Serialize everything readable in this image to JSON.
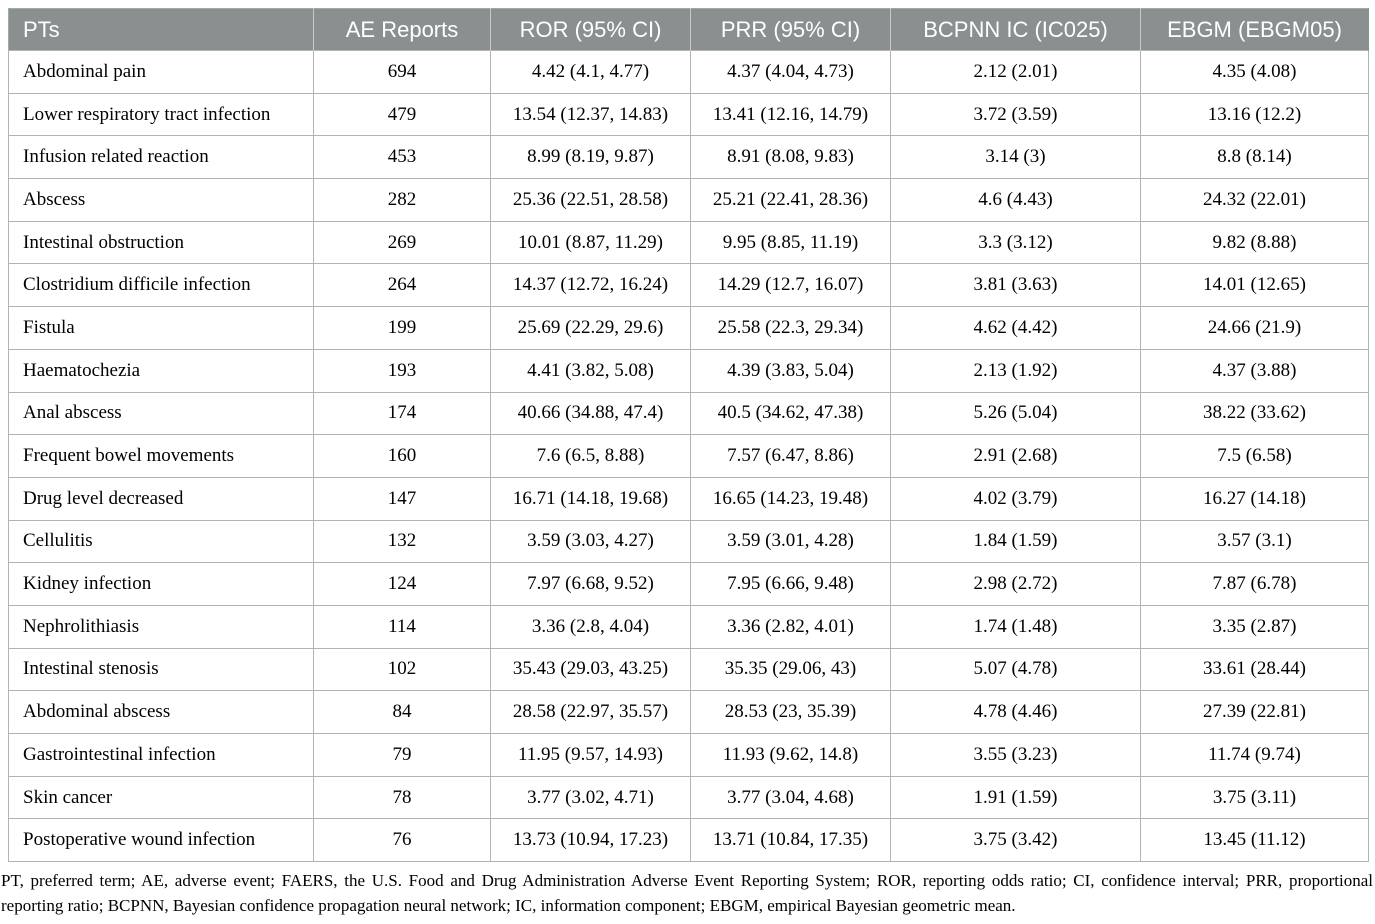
{
  "table": {
    "columns": [
      {
        "key": "pt",
        "label": "PTs",
        "align": "left"
      },
      {
        "key": "ae",
        "label": "AE Reports",
        "align": "center"
      },
      {
        "key": "ror",
        "label": "ROR (95% CI)",
        "align": "center"
      },
      {
        "key": "prr",
        "label": "PRR (95% CI)",
        "align": "center"
      },
      {
        "key": "bcpnn",
        "label": "BCPNN IC (IC025)",
        "align": "center"
      },
      {
        "key": "ebgm",
        "label": "EBGM (EBGM05)",
        "align": "center"
      }
    ],
    "rows": [
      [
        "Abdominal pain",
        "694",
        "4.42 (4.1, 4.77)",
        "4.37 (4.04, 4.73)",
        "2.12 (2.01)",
        "4.35 (4.08)"
      ],
      [
        "Lower respiratory tract infection",
        "479",
        "13.54 (12.37, 14.83)",
        "13.41 (12.16, 14.79)",
        "3.72 (3.59)",
        "13.16 (12.2)"
      ],
      [
        "Infusion related reaction",
        "453",
        "8.99 (8.19, 9.87)",
        "8.91 (8.08, 9.83)",
        "3.14 (3)",
        "8.8 (8.14)"
      ],
      [
        "Abscess",
        "282",
        "25.36 (22.51, 28.58)",
        "25.21 (22.41, 28.36)",
        "4.6 (4.43)",
        "24.32 (22.01)"
      ],
      [
        "Intestinal obstruction",
        "269",
        "10.01 (8.87, 11.29)",
        "9.95 (8.85, 11.19)",
        "3.3 (3.12)",
        "9.82 (8.88)"
      ],
      [
        "Clostridium difficile infection",
        "264",
        "14.37 (12.72, 16.24)",
        "14.29 (12.7, 16.07)",
        "3.81 (3.63)",
        "14.01 (12.65)"
      ],
      [
        "Fistula",
        "199",
        "25.69 (22.29, 29.6)",
        "25.58 (22.3, 29.34)",
        "4.62 (4.42)",
        "24.66 (21.9)"
      ],
      [
        "Haematochezia",
        "193",
        "4.41 (3.82, 5.08)",
        "4.39 (3.83, 5.04)",
        "2.13 (1.92)",
        "4.37 (3.88)"
      ],
      [
        "Anal abscess",
        "174",
        "40.66 (34.88, 47.4)",
        "40.5 (34.62, 47.38)",
        "5.26 (5.04)",
        "38.22 (33.62)"
      ],
      [
        "Frequent bowel movements",
        "160",
        "7.6 (6.5, 8.88)",
        "7.57 (6.47, 8.86)",
        "2.91 (2.68)",
        "7.5 (6.58)"
      ],
      [
        "Drug level decreased",
        "147",
        "16.71 (14.18, 19.68)",
        "16.65 (14.23, 19.48)",
        "4.02 (3.79)",
        "16.27 (14.18)"
      ],
      [
        "Cellulitis",
        "132",
        "3.59 (3.03, 4.27)",
        "3.59 (3.01, 4.28)",
        "1.84 (1.59)",
        "3.57 (3.1)"
      ],
      [
        "Kidney infection",
        "124",
        "7.97 (6.68, 9.52)",
        "7.95 (6.66, 9.48)",
        "2.98 (2.72)",
        "7.87 (6.78)"
      ],
      [
        "Nephrolithiasis",
        "114",
        "3.36 (2.8, 4.04)",
        "3.36 (2.82, 4.01)",
        "1.74 (1.48)",
        "3.35 (2.87)"
      ],
      [
        "Intestinal stenosis",
        "102",
        "35.43 (29.03, 43.25)",
        "35.35 (29.06, 43)",
        "5.07 (4.78)",
        "33.61 (28.44)"
      ],
      [
        "Abdominal abscess",
        "84",
        "28.58 (22.97, 35.57)",
        "28.53 (23, 35.39)",
        "4.78 (4.46)",
        "27.39 (22.81)"
      ],
      [
        "Gastrointestinal infection",
        "79",
        "11.95 (9.57, 14.93)",
        "11.93 (9.62, 14.8)",
        "3.55 (3.23)",
        "11.74 (9.74)"
      ],
      [
        "Skin cancer",
        "78",
        "3.77 (3.02, 4.71)",
        "3.77 (3.04, 4.68)",
        "1.91 (1.59)",
        "3.75 (3.11)"
      ],
      [
        "Postoperative wound infection",
        "76",
        "13.73 (10.94, 17.23)",
        "13.71 (10.84, 17.35)",
        "3.75 (3.42)",
        "13.45 (11.12)"
      ]
    ]
  },
  "footnote": "PT, preferred term; AE, adverse event; FAERS, the U.S. Food and Drug Administration Adverse Event Reporting System; ROR, reporting odds ratio; CI, confidence interval; PRR, proportional reporting ratio; BCPNN, Bayesian confidence propagation neural network; IC, information component; EBGM, empirical Bayesian geometric mean.",
  "colors": {
    "header_bg": "#8a8f90",
    "header_text": "#ffffff",
    "border": "#b1b4b5",
    "body_text": "#000000",
    "page_bg": "#ffffff"
  }
}
